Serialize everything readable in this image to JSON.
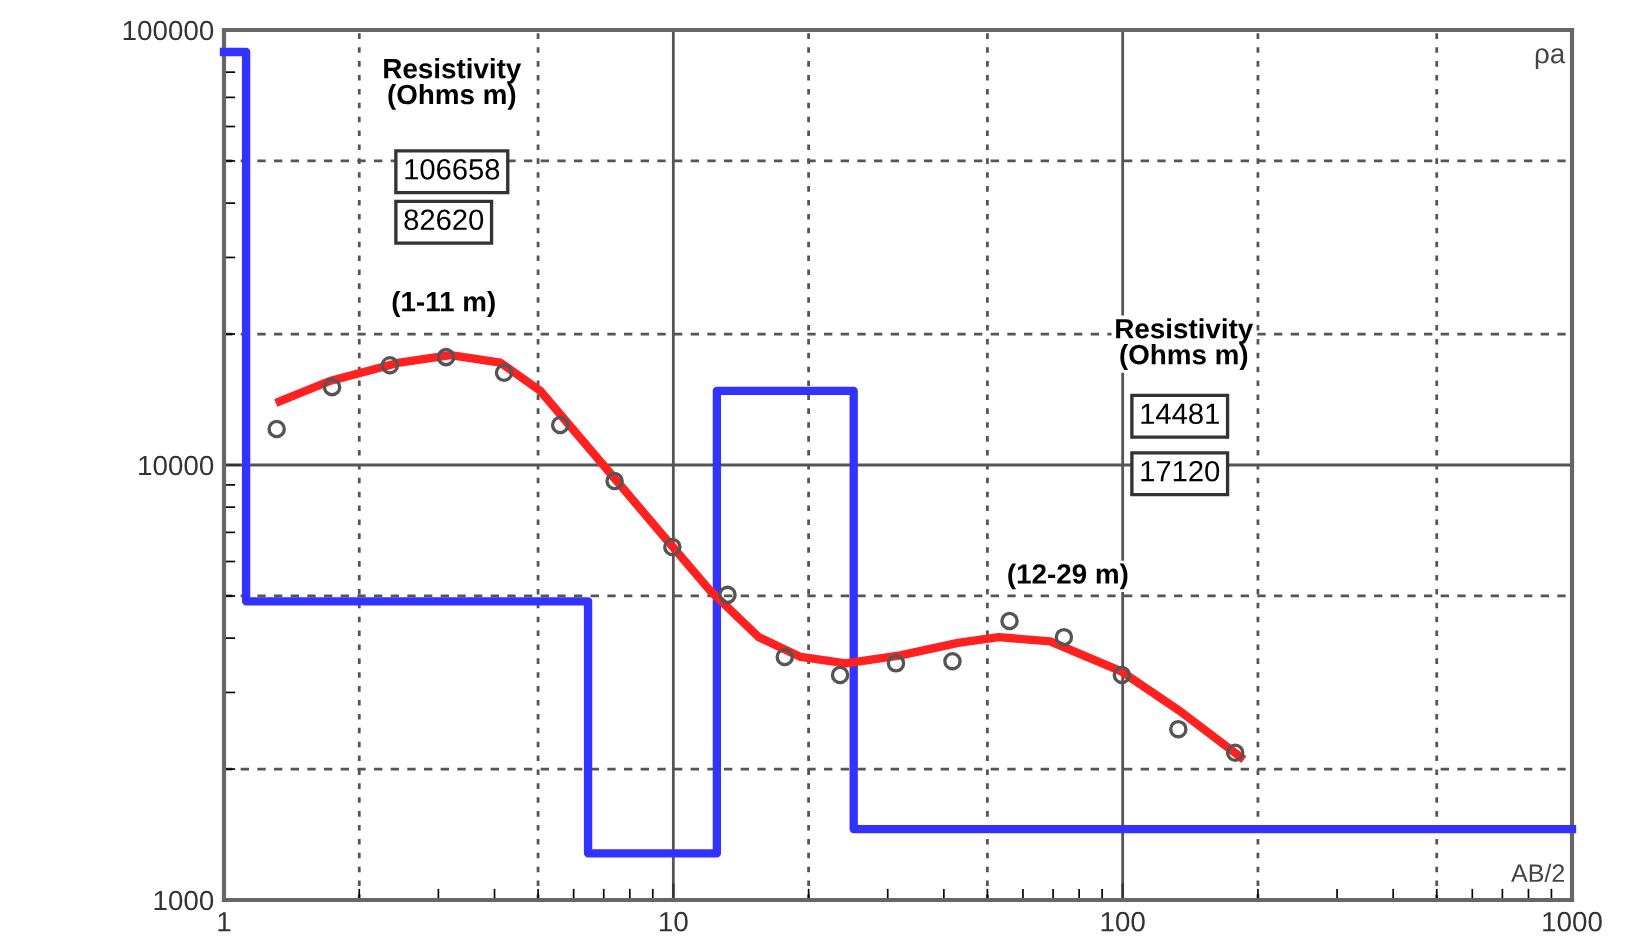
{
  "chart_data": {
    "type": "line",
    "xlabel": "AB/2",
    "ylabel": "ρa",
    "log": "xy",
    "grid": true,
    "xlim": [
      1,
      1000
    ],
    "ylim": [
      1000,
      100000
    ],
    "xticks": [
      1,
      10,
      100,
      1000
    ],
    "yticks": [
      1000,
      10000,
      100000
    ],
    "annotations": [
      "Resistivity\n(Ohms m)",
      "106658",
      "82620",
      "(1-11 m)",
      "Resistivity\n(Ohms m)",
      "14481",
      "17120",
      "(12-29 m)"
    ],
    "series": [
      {
        "type": "line",
        "color": "#3333ff",
        "marker": "none",
        "x": [
          1,
          1.12,
          1.12,
          6.46,
          6.46,
          12.5,
          12.5,
          25.2,
          25.2,
          1000
        ],
        "values": [
          89000,
          89000,
          4860,
          4860,
          1280,
          1280,
          14800,
          14800,
          1455,
          1455
        ]
      },
      {
        "color": "#ff2020",
        "marker": "none",
        "x": [
          1.33,
          1.72,
          2.46,
          3.19,
          4.12,
          5.06,
          6.87,
          9.3,
          12.1,
          15.5,
          19.2,
          24.2,
          32,
          43,
          53,
          69,
          99,
          134,
          183
        ],
        "values": [
          14000,
          15600,
          17200,
          17900,
          17200,
          14800,
          10200,
          7050,
          5130,
          4020,
          3620,
          3500,
          3650,
          3900,
          4020,
          3930,
          3360,
          2720,
          2130
        ]
      },
      {
        "type": "scatter",
        "color": "#555555",
        "marker": "circle",
        "x": [
          1.31,
          1.74,
          2.34,
          3.12,
          4.2,
          5.6,
          7.4,
          9.95,
          13.2,
          17.7,
          23.5,
          31.3,
          41.8,
          56,
          74,
          99.6,
          133,
          178
        ],
        "values": [
          12100,
          15100,
          16960,
          17700,
          16300,
          12360,
          9190,
          6480,
          5030,
          3620,
          3290,
          3500,
          3540,
          4380,
          4020,
          3290,
          2470,
          2180
        ]
      }
    ]
  }
}
